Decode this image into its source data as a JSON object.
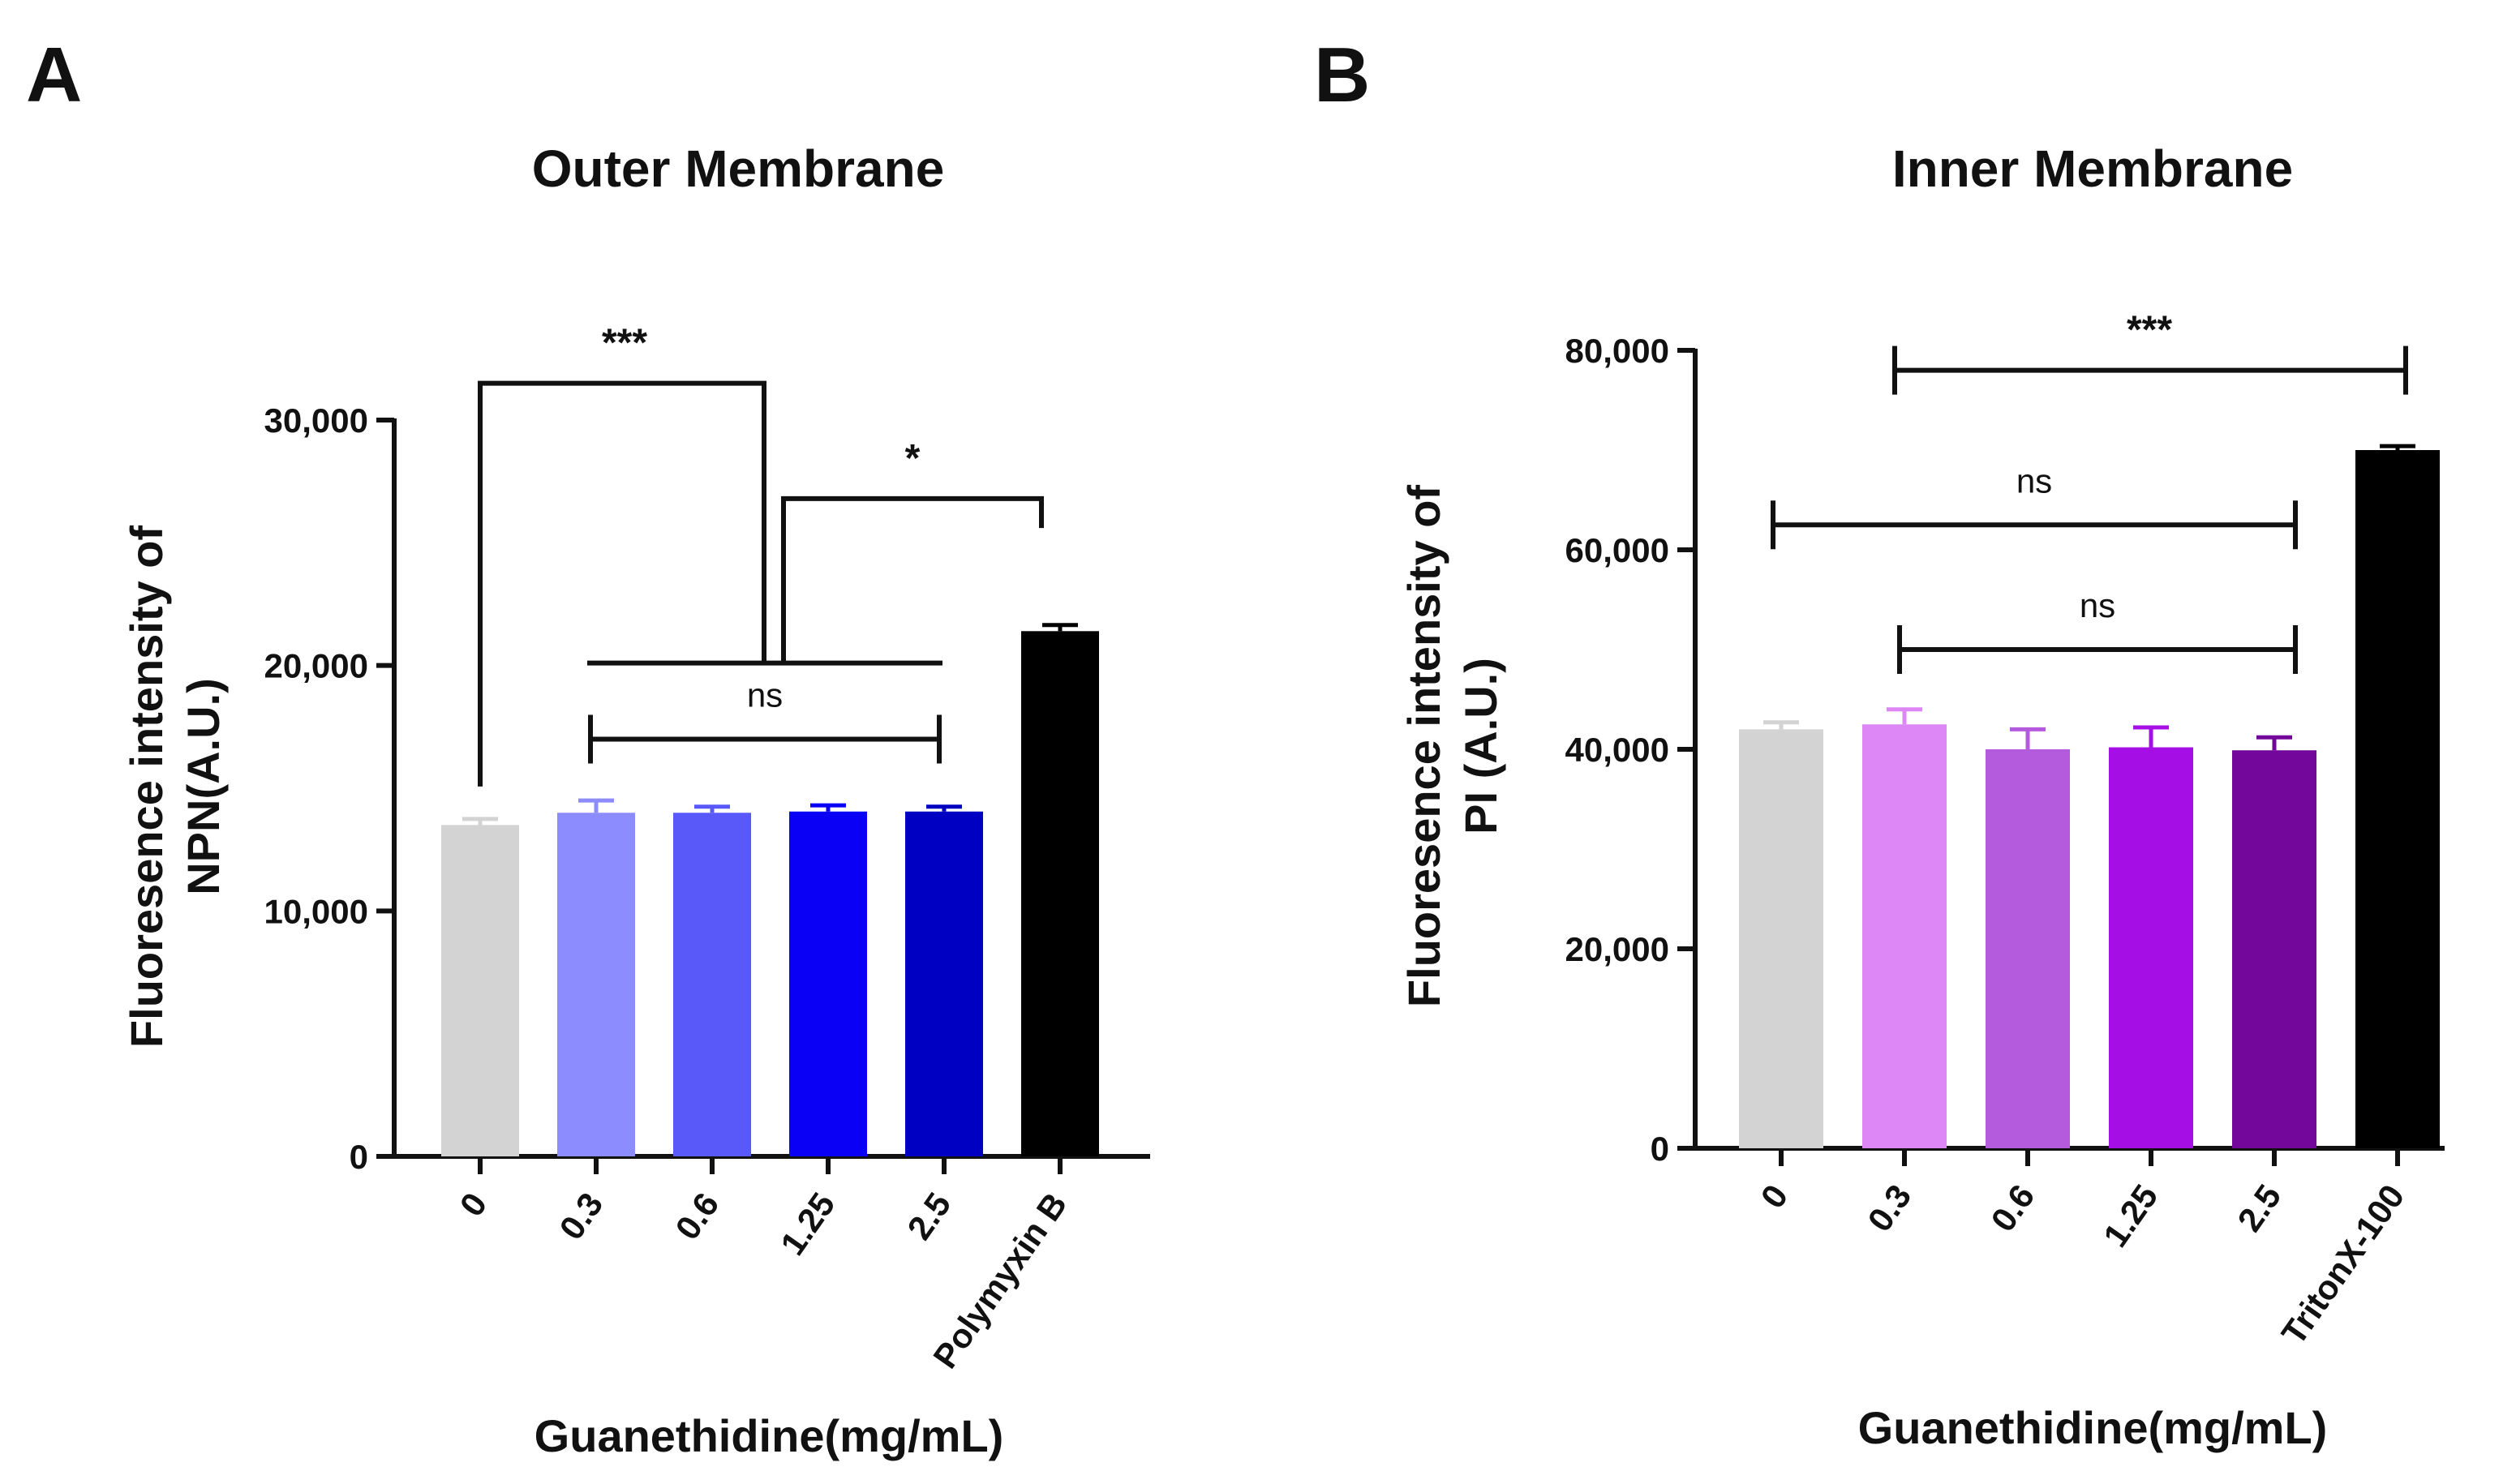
{
  "chart_data": [
    {
      "panel": "A",
      "type": "bar",
      "title": "Outer Membrane",
      "ylabel": [
        "Fluoresence intensity of",
        "NPN(A.U.)"
      ],
      "xlabel": "Guanethidine(mg/mL)",
      "categories": [
        "0",
        "0.3",
        "0.6",
        "1.25",
        "2.5",
        "Polymyxin B"
      ],
      "values": [
        13500,
        14000,
        14000,
        14050,
        14050,
        21400
      ],
      "errors": [
        250,
        500,
        250,
        250,
        200,
        250
      ],
      "colors": [
        "#d3d3d3",
        "#8c8cff",
        "#5959fa",
        "#0a00f5",
        "#0000c3",
        "#000000"
      ],
      "ylim": [
        0,
        30000
      ],
      "yticks": [
        0,
        10000,
        20000,
        30000
      ],
      "ytick_labels": [
        "0",
        "10,000",
        "20,000",
        "30,000"
      ],
      "significance": [
        {
          "label": "*",
          "from": "0",
          "to": "0.3–2.5 (group)",
          "y": 26800
        },
        {
          "label": "***",
          "from": "0.3–2.5 (group)",
          "to": "Polymyxin B",
          "y": 31500
        },
        {
          "label": "ns",
          "from": "0.3",
          "to": "2.5",
          "y": 17000
        }
      ]
    },
    {
      "panel": "B",
      "type": "bar",
      "title": "Inner Membrane",
      "ylabel": [
        "Fluoresence intensity of",
        "PI (A.U.)"
      ],
      "xlabel": "Guanethidine(mg/mL)",
      "categories": [
        "0",
        "0.3",
        "0.6",
        "1.25",
        "2.5",
        "TritonX-100"
      ],
      "values": [
        42000,
        42500,
        40000,
        40200,
        39900,
        70000
      ],
      "errors": [
        700,
        1500,
        2000,
        2000,
        1300,
        400
      ],
      "colors": [
        "#d3d3d3",
        "#dc87f5",
        "#b45adc",
        "#a50fe6",
        "#73069b",
        "#000000"
      ],
      "ylim": [
        0,
        80000
      ],
      "yticks": [
        0,
        20000,
        40000,
        60000,
        80000
      ],
      "ytick_labels": [
        "0",
        "20,000",
        "40,000",
        "60,000",
        "80,000"
      ],
      "significance": [
        {
          "label": "***",
          "from": "0.3",
          "to": "TritonX-100",
          "y": 78000
        },
        {
          "label": "ns",
          "from": "0",
          "to": "2.5",
          "y": 62500
        },
        {
          "label": "ns",
          "from": "0.3",
          "to": "2.5",
          "y": 50000
        }
      ]
    }
  ]
}
